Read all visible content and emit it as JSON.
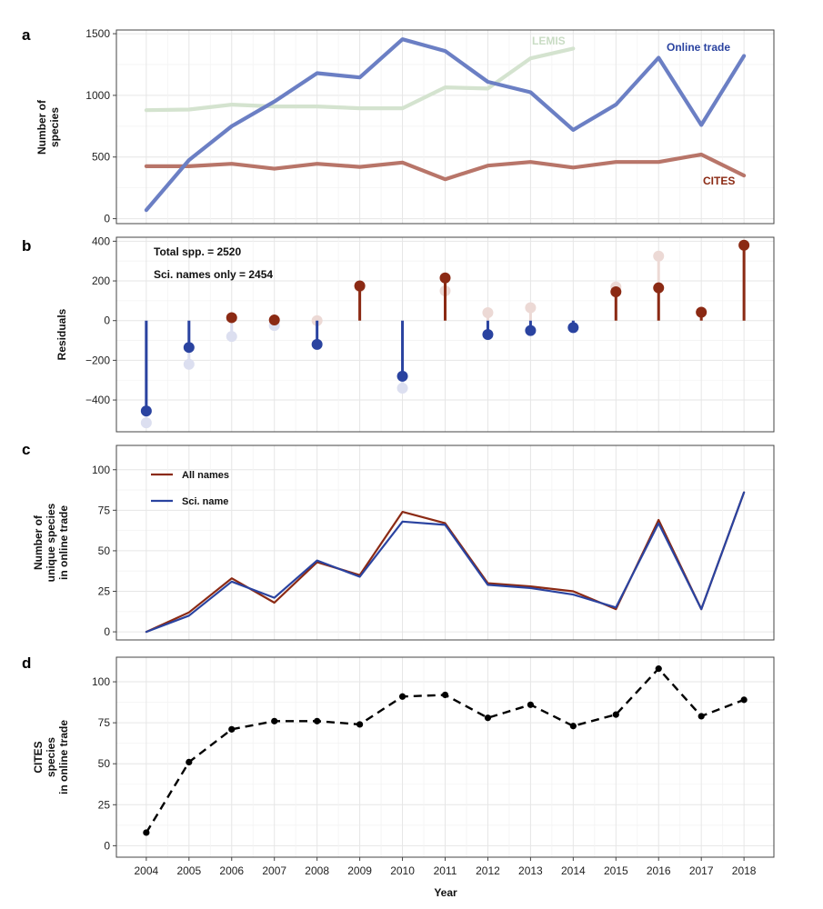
{
  "colors": {
    "online": "#6b7fc4",
    "lemis": "#d4e3cf",
    "cites": "#b87569",
    "positive": "#8b2a14",
    "negative": "#2a43a0",
    "positive_faint": "#ecd9d5",
    "negative_faint": "#dcdff0",
    "all_names": "#8b2a14",
    "sci_name": "#2a43a0",
    "dashed": "#000000"
  },
  "chart_data": [
    {
      "panel": "a",
      "type": "line",
      "ylabel": "Number of species",
      "ylim": [
        -40,
        1530
      ],
      "yticks": [
        0,
        500,
        1000,
        1500
      ],
      "x": [
        2004,
        2005,
        2006,
        2007,
        2008,
        2009,
        2010,
        2011,
        2012,
        2013,
        2014,
        2015,
        2016,
        2017,
        2018
      ],
      "series": [
        {
          "name": "LEMIS",
          "color_key": "lemis",
          "x": [
            2004,
            2005,
            2006,
            2007,
            2008,
            2009,
            2010,
            2011,
            2012,
            2013,
            2014
          ],
          "values": [
            880,
            885,
            925,
            910,
            910,
            895,
            895,
            1065,
            1055,
            1300,
            1380
          ]
        },
        {
          "name": "Online trade",
          "color_key": "online",
          "x": [
            2004,
            2005,
            2006,
            2007,
            2008,
            2009,
            2010,
            2011,
            2012,
            2013,
            2014,
            2015,
            2016,
            2017,
            2018
          ],
          "values": [
            70,
            475,
            750,
            950,
            1180,
            1145,
            1455,
            1360,
            1110,
            1025,
            720,
            925,
            1305,
            760,
            1320
          ]
        },
        {
          "name": "CITES",
          "color_key": "cites",
          "x": [
            2004,
            2005,
            2006,
            2007,
            2008,
            2009,
            2010,
            2011,
            2012,
            2013,
            2014,
            2015,
            2016,
            2017,
            2018
          ],
          "values": [
            425,
            425,
            445,
            405,
            445,
            420,
            455,
            320,
            430,
            460,
            415,
            460,
            460,
            520,
            350
          ]
        }
      ],
      "annotations": [
        "LEMIS",
        "Online trade",
        "CITES"
      ]
    },
    {
      "panel": "b",
      "type": "lollipop",
      "ylabel": "Residuals",
      "ylim": [
        -560,
        420
      ],
      "yticks": [
        -400,
        -200,
        0,
        200,
        400
      ],
      "x": [
        2004,
        2005,
        2006,
        2007,
        2008,
        2009,
        2010,
        2011,
        2012,
        2013,
        2014,
        2015,
        2016,
        2017,
        2018
      ],
      "values": [
        -455,
        -135,
        15,
        3,
        -120,
        175,
        -280,
        215,
        -70,
        -50,
        -35,
        145,
        165,
        42,
        380
      ],
      "faint_values": [
        -515,
        -220,
        -80,
        -25,
        0,
        170,
        -340,
        150,
        40,
        65,
        -35,
        170,
        325,
        42,
        380
      ],
      "annotations": [
        "Total spp. = 2520",
        "Sci. names only = 2454"
      ]
    },
    {
      "panel": "c",
      "type": "line",
      "ylabel": "Number of unique species in online trade",
      "ylim": [
        -5,
        115
      ],
      "yticks": [
        0,
        25,
        50,
        75,
        100
      ],
      "x": [
        2004,
        2005,
        2006,
        2007,
        2008,
        2009,
        2010,
        2011,
        2012,
        2013,
        2014,
        2015,
        2016,
        2017,
        2018
      ],
      "series": [
        {
          "name": "All names",
          "color_key": "all_names",
          "values": [
            0,
            12,
            33,
            18,
            43,
            35,
            74,
            67,
            30,
            28,
            25,
            14,
            69,
            14,
            86
          ]
        },
        {
          "name": "Sci. name",
          "color_key": "sci_name",
          "values": [
            0,
            10,
            31,
            21,
            44,
            34,
            68,
            66,
            29,
            27,
            23,
            15,
            67,
            14,
            86
          ]
        }
      ],
      "legend": "top-left"
    },
    {
      "panel": "d",
      "type": "line",
      "ylabel": "CITES species in online trade",
      "xlabel": "Year",
      "ylim": [
        -7,
        115
      ],
      "yticks": [
        0,
        25,
        50,
        75,
        100
      ],
      "x": [
        2004,
        2005,
        2006,
        2007,
        2008,
        2009,
        2010,
        2011,
        2012,
        2013,
        2014,
        2015,
        2016,
        2017,
        2018
      ],
      "values": [
        8,
        51,
        71,
        76,
        76,
        74,
        91,
        92,
        78,
        86,
        73,
        80,
        108,
        79,
        89
      ],
      "style": "dashed with points"
    }
  ]
}
